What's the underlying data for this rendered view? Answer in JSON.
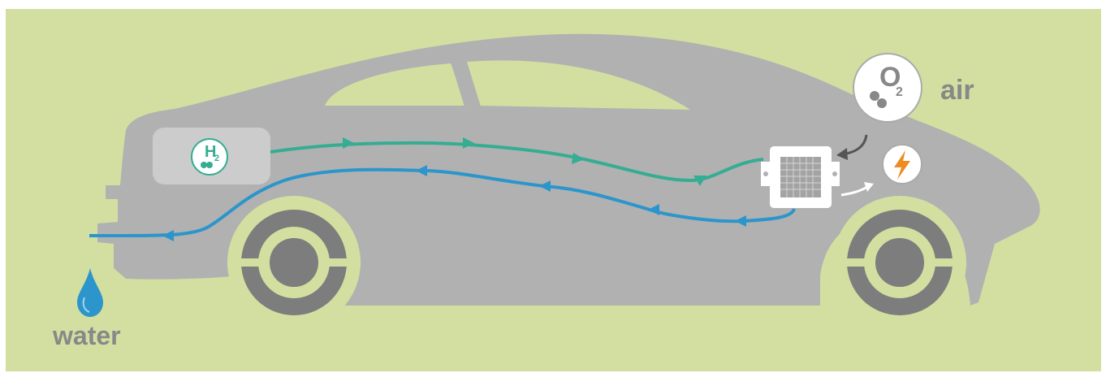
{
  "colors": {
    "background": "#d2dfa1",
    "car_body": "#b1b1b1",
    "hydrogen_flow": "#35ad93",
    "water_flow": "#2b95cc",
    "label_text": "#888888",
    "lightning": "#ef8a23"
  },
  "labels": {
    "air": "air",
    "water": "water"
  },
  "badges": {
    "oxygen": {
      "letter": "O",
      "subscript": "2"
    },
    "hydrogen": {
      "letter": "H",
      "subscript": "2"
    }
  },
  "icons": [
    "water-drop-icon",
    "lightning-icon",
    "fuel-cell-icon",
    "oxygen-molecule-icon",
    "hydrogen-molecule-icon"
  ]
}
